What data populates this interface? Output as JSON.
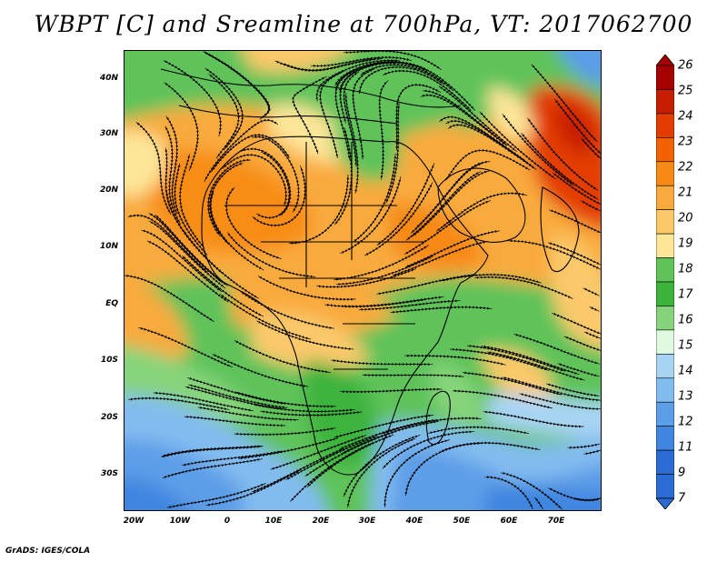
{
  "title": "WBPT [C] and Sreamline at 700hPa, VT: 2017062700",
  "credit": "GrADS: IGES/COLA",
  "map": {
    "lat_ticks": [
      "40N",
      "30N",
      "20N",
      "10N",
      "EQ",
      "10S",
      "20S",
      "30S"
    ],
    "lat_values": [
      40,
      30,
      20,
      10,
      0,
      -10,
      -20,
      -30
    ],
    "lon_ticks": [
      "20W",
      "10W",
      "0",
      "10E",
      "20E",
      "30E",
      "40E",
      "50E",
      "60E",
      "70E"
    ],
    "lon_values": [
      -20,
      -10,
      0,
      10,
      20,
      30,
      40,
      50,
      60,
      70
    ],
    "lon_range": [
      -22,
      80
    ],
    "lat_range": [
      -36,
      45
    ]
  },
  "colorbar": {
    "labels": [
      "26",
      "25",
      "24",
      "23",
      "22",
      "21",
      "20",
      "19",
      "18",
      "17",
      "16",
      "15",
      "14",
      "13",
      "12",
      "11",
      "9",
      "7"
    ],
    "colors": [
      "#a50000",
      "#c81e00",
      "#e33c00",
      "#f26300",
      "#f78a14",
      "#f9aa3c",
      "#fbc96a",
      "#fde698",
      "#5fc35a",
      "#3cb43c",
      "#86d47a",
      "#e0fae0",
      "#a8d4f4",
      "#82bcef",
      "#5d9ee8",
      "#3f86e0",
      "#2a6bd4",
      "#2a6bd4"
    ]
  }
}
